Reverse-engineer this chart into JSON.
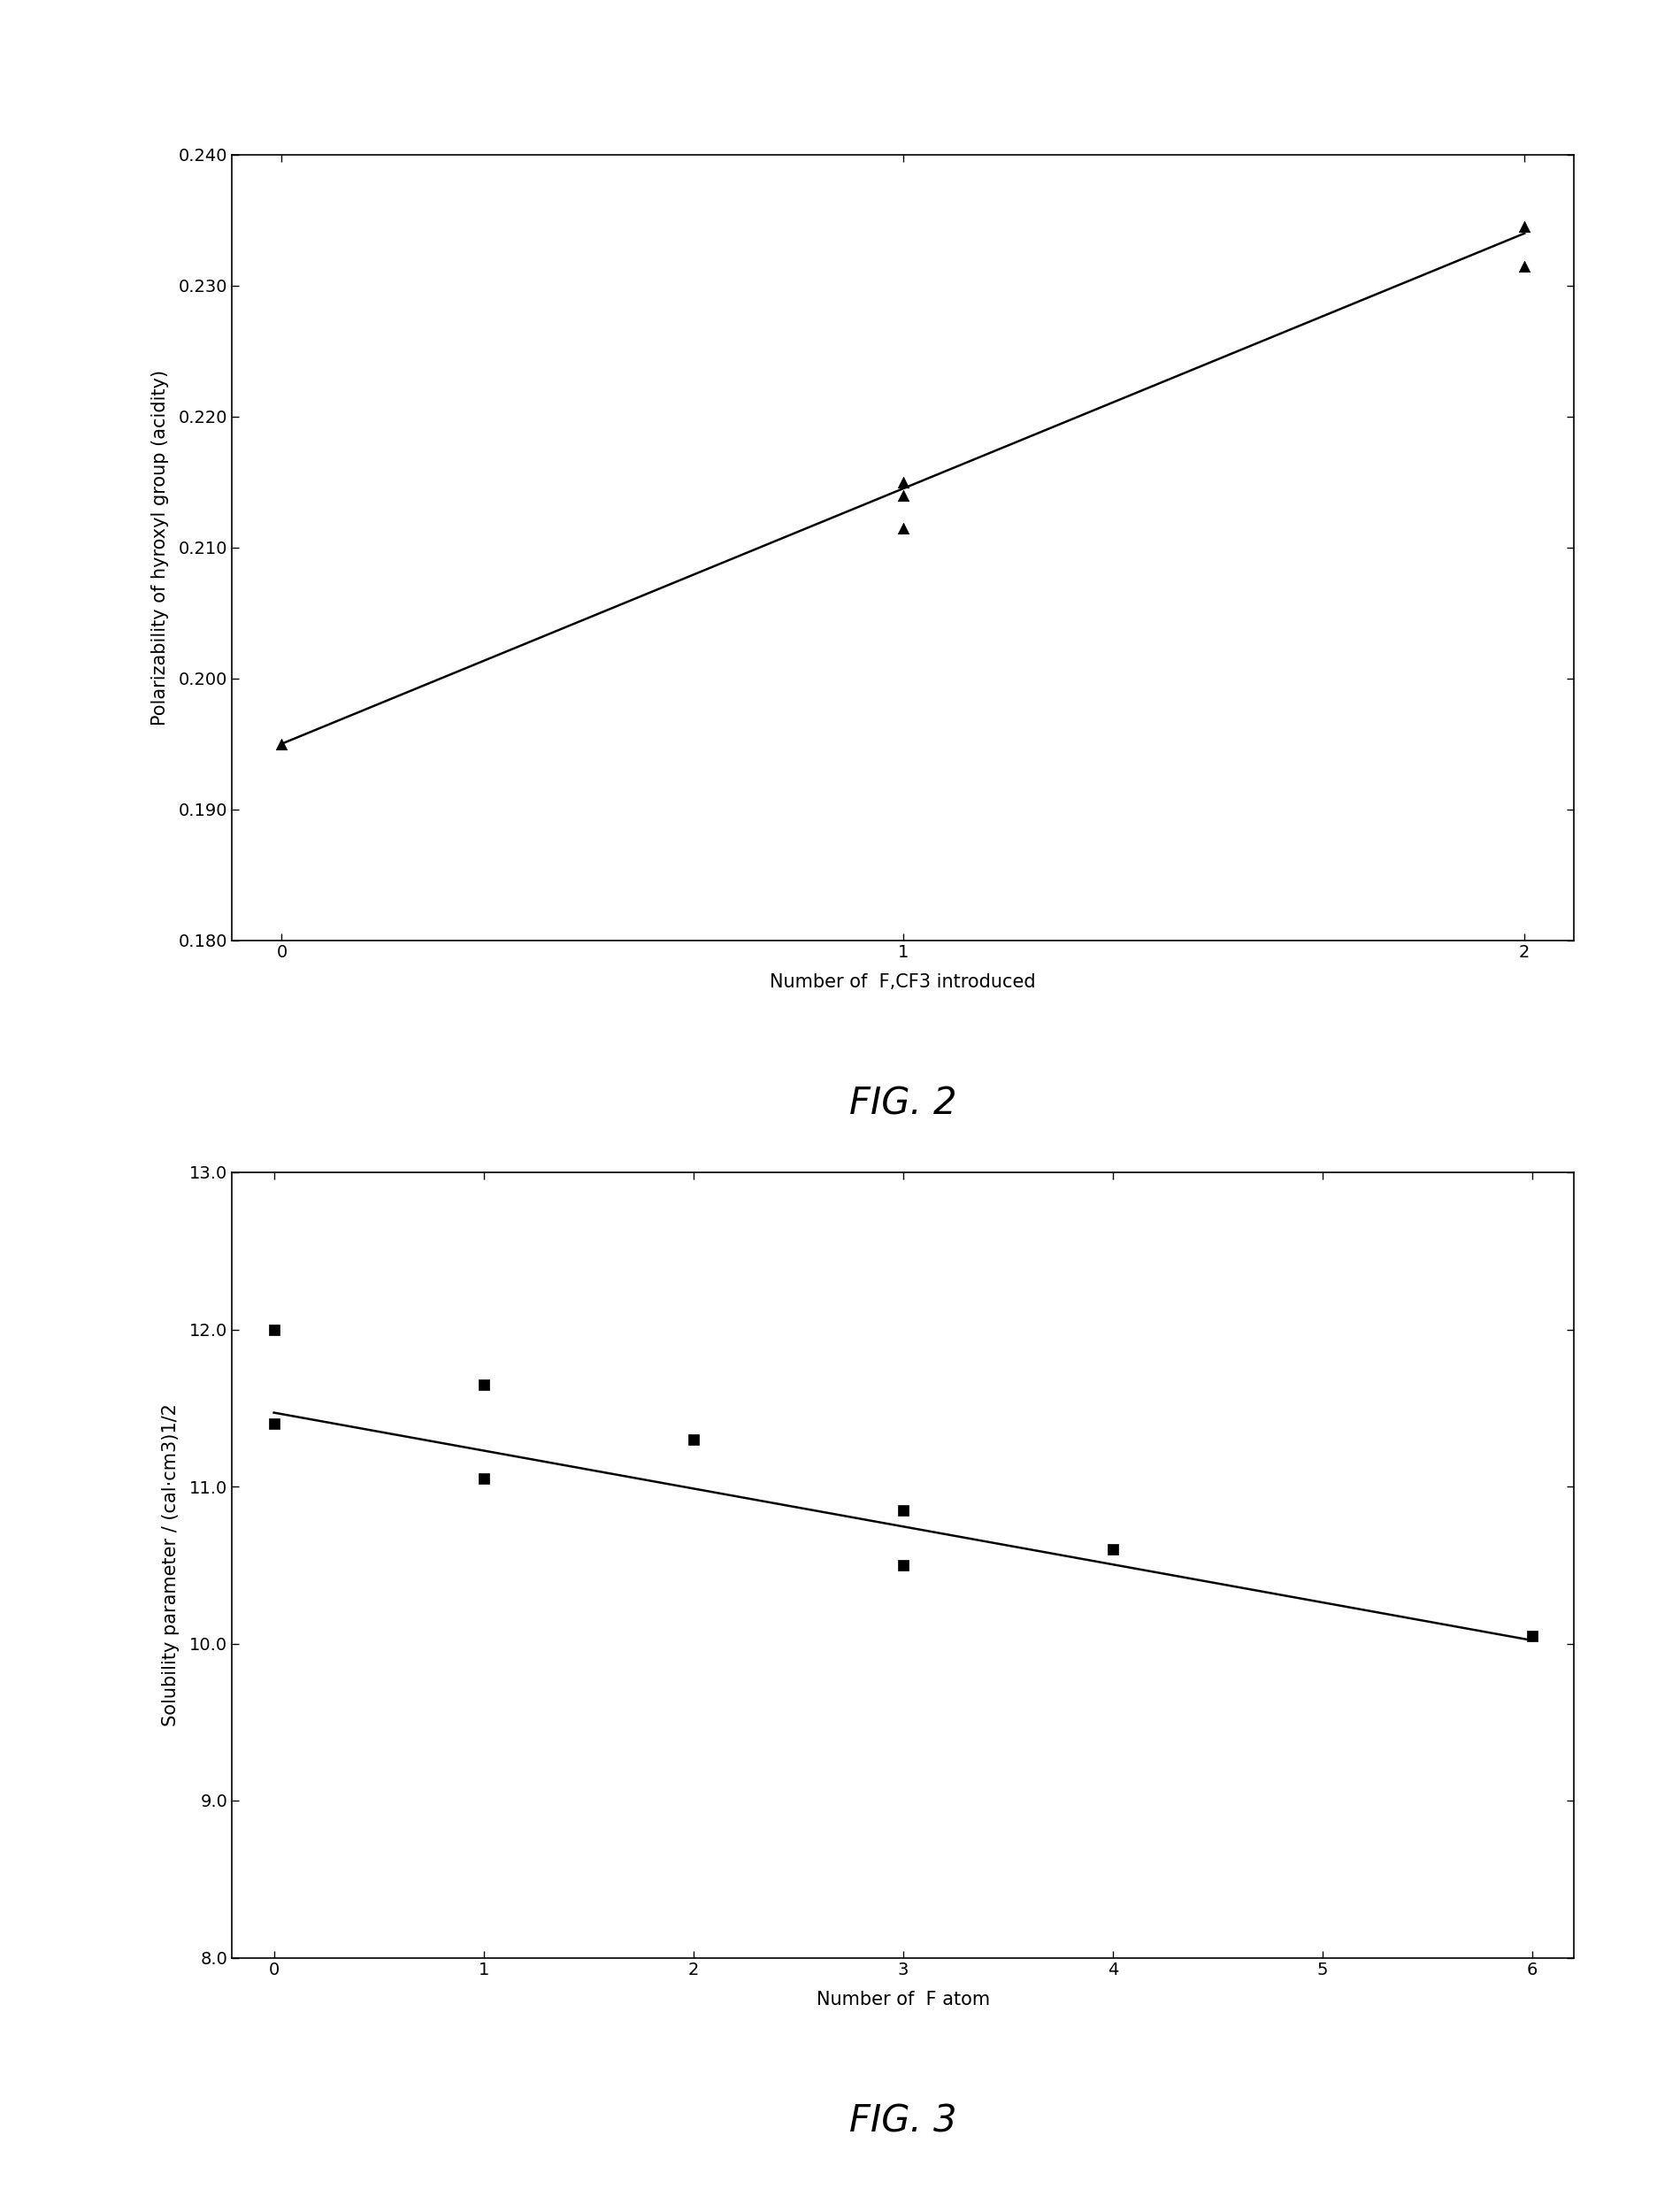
{
  "fig2": {
    "title": "FIG. 2",
    "xlabel": "Number of  F,CF3 introduced",
    "ylabel": "Polarizability of hyroxyl group (acidity)",
    "xlim": [
      -0.08,
      2.08
    ],
    "ylim": [
      0.18,
      0.24
    ],
    "xticks": [
      0,
      1,
      2
    ],
    "yticks": [
      0.18,
      0.19,
      0.2,
      0.21,
      0.22,
      0.23,
      0.24
    ],
    "data_x": [
      0,
      1,
      1,
      1,
      2,
      2
    ],
    "data_y": [
      0.195,
      0.215,
      0.214,
      0.2115,
      0.2345,
      0.2315
    ],
    "line_x": [
      0,
      2
    ],
    "line_y": [
      0.195,
      0.234
    ],
    "marker": "^",
    "marker_color": "#000000",
    "marker_size": 9,
    "line_color": "#000000",
    "line_width": 1.8
  },
  "fig3": {
    "title": "FIG. 3",
    "xlabel": "Number of  F atom",
    "ylabel": "Solubility parameter / (cal·cm3)1/2",
    "xlim": [
      -0.2,
      6.2
    ],
    "ylim": [
      8.0,
      13.0
    ],
    "xticks": [
      0,
      1,
      2,
      3,
      4,
      5,
      6
    ],
    "yticks": [
      8.0,
      9.0,
      10.0,
      11.0,
      12.0,
      13.0
    ],
    "data_x": [
      0,
      0,
      1,
      1,
      2,
      3,
      3,
      4,
      6
    ],
    "data_y": [
      12.0,
      11.4,
      11.65,
      11.05,
      11.3,
      10.85,
      10.5,
      10.6,
      10.05
    ],
    "line_x": [
      0,
      6
    ],
    "line_y": [
      11.47,
      10.02
    ],
    "marker": "s",
    "marker_color": "#000000",
    "marker_size": 9,
    "line_color": "#000000",
    "line_width": 1.8
  },
  "background_color": "#ffffff",
  "title_fontsize": 30,
  "label_fontsize": 15,
  "tick_fontsize": 14
}
